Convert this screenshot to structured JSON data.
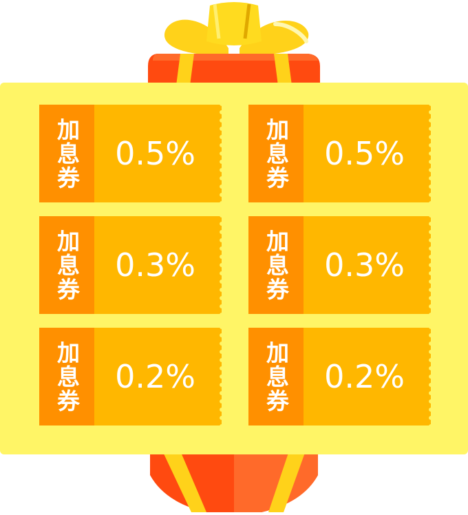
{
  "colors": {
    "panel": "#fff566",
    "coupon_body": "#ffb700",
    "coupon_stub": "#ff9000",
    "gift_box": "#ff4a10",
    "gift_ribbon": "#ffd21a",
    "text": "#ffffff"
  },
  "coupons": [
    {
      "label": "加息券",
      "value": "0.5%"
    },
    {
      "label": "加息券",
      "value": "0.5%"
    },
    {
      "label": "加息券",
      "value": "0.3%"
    },
    {
      "label": "加息券",
      "value": "0.3%"
    },
    {
      "label": "加息券",
      "value": "0.2%"
    },
    {
      "label": "加息券",
      "value": "0.2%"
    }
  ]
}
